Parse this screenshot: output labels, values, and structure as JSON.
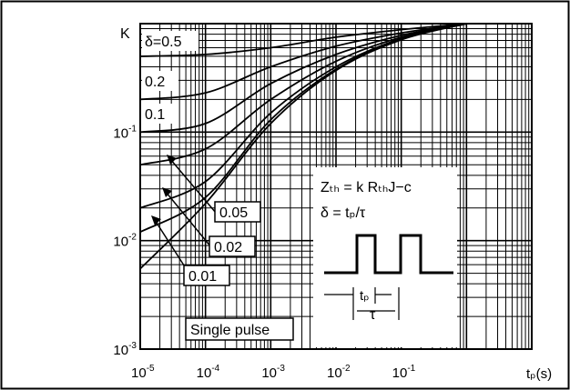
{
  "chart_data": {
    "type": "line",
    "x_scale": "log",
    "y_scale": "log",
    "xlim": [
      1e-05,
      10
    ],
    "ylim": [
      0.001,
      1
    ],
    "grid": true,
    "xlabel": "tₚ(s)",
    "ylabel": "K",
    "x_ticks": [
      {
        "value": 1e-05,
        "base": "10",
        "exp": "-5"
      },
      {
        "value": 0.0001,
        "base": "10",
        "exp": "-4"
      },
      {
        "value": 0.001,
        "base": "10",
        "exp": "-3"
      },
      {
        "value": 0.01,
        "base": "10",
        "exp": "-2"
      },
      {
        "value": 0.1,
        "base": "10",
        "exp": "-1"
      }
    ],
    "y_ticks": [
      {
        "value": 0.1,
        "base": "10",
        "exp": "-1"
      },
      {
        "value": 0.01,
        "base": "10",
        "exp": "-2"
      },
      {
        "value": 0.001,
        "base": "10",
        "exp": "-3"
      }
    ],
    "series": [
      {
        "name": "δ=0.5",
        "x": [
          1e-05,
          0.0001,
          0.001,
          0.01,
          0.1,
          1
        ],
        "y": [
          0.5,
          0.52,
          0.6,
          0.75,
          0.88,
          1.0
        ]
      },
      {
        "name": "0.2",
        "x": [
          1e-05,
          0.0001,
          0.001,
          0.01,
          0.1,
          1
        ],
        "y": [
          0.2,
          0.23,
          0.4,
          0.62,
          0.82,
          1.0
        ]
      },
      {
        "name": "0.1",
        "x": [
          1e-05,
          0.0001,
          0.001,
          0.01,
          0.1,
          1
        ],
        "y": [
          0.1,
          0.12,
          0.28,
          0.52,
          0.78,
          1.0
        ]
      },
      {
        "name": "0.05",
        "x": [
          1e-05,
          0.0001,
          0.001,
          0.01,
          0.1,
          1
        ],
        "y": [
          0.05,
          0.07,
          0.2,
          0.45,
          0.75,
          1.0
        ]
      },
      {
        "name": "0.02",
        "x": [
          1e-05,
          0.0001,
          0.001,
          0.01,
          0.1,
          1
        ],
        "y": [
          0.02,
          0.035,
          0.15,
          0.4,
          0.73,
          1.0
        ]
      },
      {
        "name": "0.01",
        "x": [
          1e-05,
          0.0001,
          0.001,
          0.01,
          0.1,
          1
        ],
        "y": [
          0.012,
          0.025,
          0.13,
          0.38,
          0.72,
          1.0
        ]
      },
      {
        "name": "Single pulse",
        "x": [
          1e-05,
          0.0001,
          0.001,
          0.01,
          0.1,
          1
        ],
        "y": [
          0.0055,
          0.022,
          0.12,
          0.37,
          0.71,
          1.0
        ]
      }
    ],
    "inset": {
      "formula_1": "Zₜₕ = k RₜₕJ−c",
      "formula_2": "δ = tₚ/τ",
      "tp_label": "tₚ",
      "tau_label": "τ"
    }
  }
}
